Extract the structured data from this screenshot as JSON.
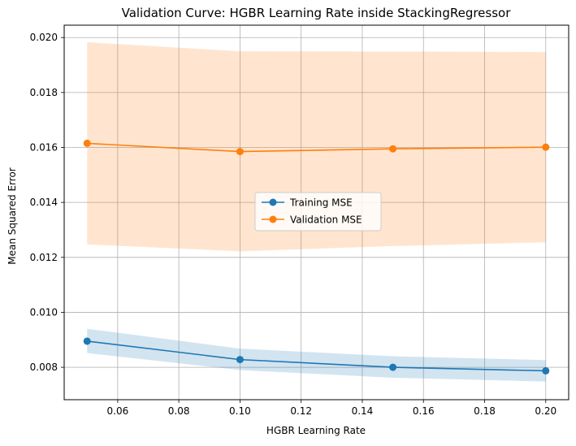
{
  "chart_data": {
    "type": "line",
    "title": "Validation Curve: HGBR Learning Rate inside StackingRegressor",
    "xlabel": "HGBR Learning Rate",
    "ylabel": "Mean Squared Error",
    "x": [
      0.05,
      0.1,
      0.15,
      0.2
    ],
    "xlim": [
      0.0425,
      0.2075
    ],
    "ylim": [
      0.00682,
      0.02045
    ],
    "x_ticks": [
      0.06,
      0.08,
      0.1,
      0.12,
      0.14,
      0.16,
      0.18,
      0.2
    ],
    "x_tick_labels": [
      "0.06",
      "0.08",
      "0.10",
      "0.12",
      "0.14",
      "0.16",
      "0.18",
      "0.20"
    ],
    "y_ticks": [
      0.008,
      0.01,
      0.012,
      0.014,
      0.016,
      0.018,
      0.02
    ],
    "y_tick_labels": [
      "0.008",
      "0.010",
      "0.012",
      "0.014",
      "0.016",
      "0.018",
      "0.020"
    ],
    "grid": true,
    "legend_position": "center",
    "series": [
      {
        "name": "Training MSE",
        "values": [
          0.00895,
          0.00828,
          0.008,
          0.00787
        ],
        "band_upper": [
          0.0094,
          0.00868,
          0.0084,
          0.00826
        ],
        "band_lower": [
          0.00852,
          0.0079,
          0.00762,
          0.00748
        ],
        "color": "#1f77b4",
        "band_color": "#1f77b4"
      },
      {
        "name": "Validation MSE",
        "values": [
          0.01615,
          0.01585,
          0.01595,
          0.01601
        ],
        "band_upper": [
          0.01983,
          0.0195,
          0.01949,
          0.01947
        ],
        "band_lower": [
          0.01247,
          0.01222,
          0.01241,
          0.01255
        ],
        "color": "#ff7f0e",
        "band_color": "#ff7f0e"
      }
    ]
  }
}
